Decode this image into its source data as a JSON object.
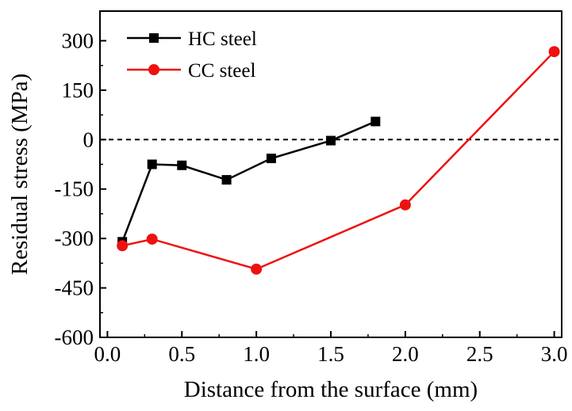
{
  "chart_data": {
    "type": "line",
    "title": "",
    "xlabel": "Distance from the surface (mm)",
    "ylabel": "Residual stress (MPa)",
    "xlim": [
      -0.05,
      3.05
    ],
    "ylim": [
      -600,
      390
    ],
    "xticks": [
      0.0,
      0.5,
      1.0,
      1.5,
      2.0,
      2.5,
      3.0
    ],
    "xtick_labels": [
      "0.0",
      "0.5",
      "1.0",
      "1.5",
      "2.0",
      "2.5",
      "3.0"
    ],
    "yticks": [
      -600,
      -450,
      -300,
      -150,
      0,
      150,
      300
    ],
    "ytick_labels": [
      "-600",
      "-450",
      "-300",
      "-150",
      "0",
      "150",
      "300"
    ],
    "reference_line": {
      "y": 0,
      "style": "dashed",
      "color": "#000000"
    },
    "legend_position": "top-left",
    "grid": false,
    "series": [
      {
        "name": "HC steel",
        "color": "#000000",
        "marker": "square",
        "x": [
          0.1,
          0.3,
          0.5,
          0.8,
          1.1,
          1.5,
          1.8
        ],
        "y": [
          -310,
          -75,
          -78,
          -122,
          -57,
          -3,
          55
        ]
      },
      {
        "name": "CC steel",
        "color": "#ee1111",
        "marker": "circle",
        "x": [
          0.1,
          0.3,
          1.0,
          2.0,
          3.0
        ],
        "y": [
          -322,
          -302,
          -393,
          -198,
          267
        ]
      }
    ]
  }
}
